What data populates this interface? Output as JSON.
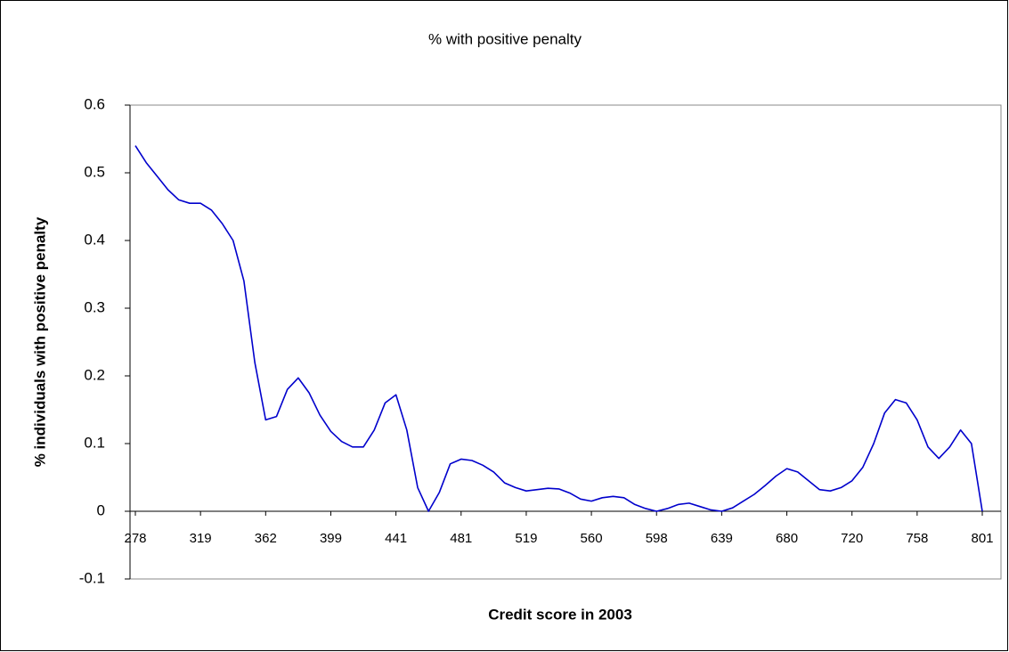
{
  "chart_data": {
    "type": "line",
    "title": "% with positive penalty",
    "x_label": "Credit score in 2003",
    "y_label": "% individuals with positive penalty",
    "categories": [
      "278",
      null,
      null,
      null,
      null,
      null,
      "319",
      null,
      null,
      null,
      null,
      null,
      "362",
      null,
      null,
      null,
      null,
      null,
      "399",
      null,
      null,
      null,
      null,
      null,
      "441",
      null,
      null,
      null,
      null,
      null,
      "481",
      null,
      null,
      null,
      null,
      null,
      "519",
      null,
      null,
      null,
      null,
      null,
      "560",
      null,
      null,
      null,
      null,
      null,
      "598",
      null,
      null,
      null,
      null,
      null,
      "639",
      null,
      null,
      null,
      null,
      null,
      "680",
      null,
      null,
      null,
      null,
      null,
      "720",
      null,
      null,
      null,
      null,
      null,
      "758",
      null,
      null,
      null,
      null,
      null,
      "801"
    ],
    "series": [
      {
        "color": "#0000cc",
        "values": [
          0.54,
          0.515,
          0.495,
          0.475,
          0.46,
          0.455,
          0.455,
          0.445,
          0.425,
          0.4,
          0.34,
          0.22,
          0.135,
          0.14,
          0.18,
          0.197,
          0.175,
          0.142,
          0.118,
          0.103,
          0.095,
          0.095,
          0.12,
          0.16,
          0.172,
          0.12,
          0.035,
          0.0,
          0.028,
          0.07,
          0.077,
          0.075,
          0.068,
          0.058,
          0.042,
          0.035,
          0.03,
          0.032,
          0.034,
          0.033,
          0.027,
          0.018,
          0.015,
          0.02,
          0.022,
          0.02,
          0.01,
          0.004,
          0.0,
          0.004,
          0.01,
          0.012,
          0.007,
          0.002,
          0.0,
          0.005,
          0.015,
          0.025,
          0.038,
          0.052,
          0.063,
          0.058,
          0.045,
          0.032,
          0.03,
          0.035,
          0.045,
          0.065,
          0.1,
          0.145,
          0.165,
          0.16,
          0.135,
          0.095,
          0.078,
          0.095,
          0.12,
          0.1,
          0.0
        ]
      }
    ],
    "ylim": [
      -0.1,
      0.6
    ],
    "yticks": [
      -0.1,
      0,
      0.1,
      0.2,
      0.3,
      0.4,
      0.5,
      0.6
    ],
    "grid": false
  }
}
